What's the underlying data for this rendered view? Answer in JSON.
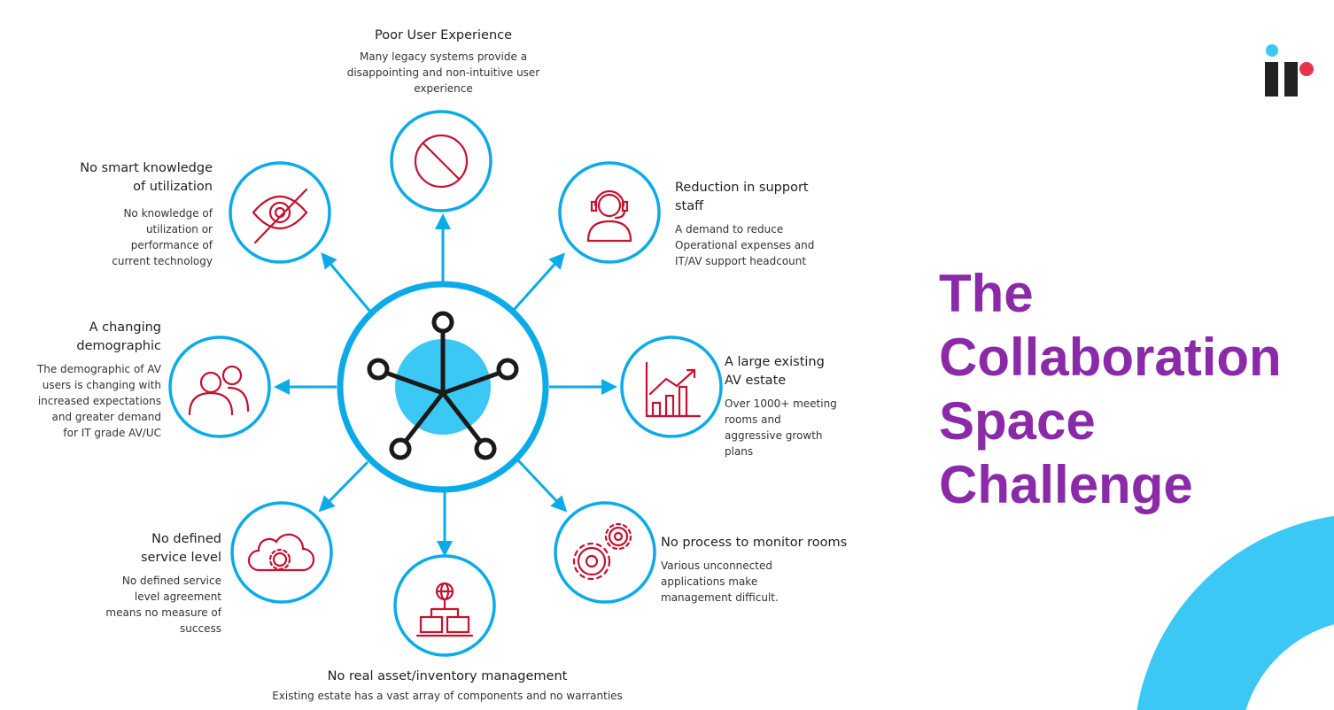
{
  "colors": {
    "ring": "#0aabe8",
    "hub": "#3cc8f4",
    "icon": "#c4122f",
    "title": "#8a2aa8",
    "logo_dot_blue": "#3cc8f4",
    "logo_dot_red": "#e8334a"
  },
  "title": [
    "The",
    "Collaboration",
    "Space",
    "Challenge"
  ],
  "items": [
    {
      "icon": "prohibited-icon",
      "heading": "Poor User Experience",
      "body": "Many legacy systems provide a disappointing and non-intuitive user experience"
    },
    {
      "icon": "headset-agent-icon",
      "heading": "Reduction in support staff",
      "body": "A demand to reduce Operational expenses and IT/AV support headcount"
    },
    {
      "icon": "growth-chart-icon",
      "heading": "A large existing AV estate",
      "body": "Over 1000+ meeting rooms and aggressive growth plans"
    },
    {
      "icon": "gears-icon",
      "heading": "No process to monitor rooms",
      "body": "Various unconnected applications make management difficult."
    },
    {
      "icon": "network-devices-icon",
      "heading": "No real asset/inventory management",
      "body": "Existing estate has a vast array of components and no warranties"
    },
    {
      "icon": "cloud-gear-icon",
      "heading": "No defined service level",
      "body": "No defined service level agreement means no measure of success"
    },
    {
      "icon": "users-icon",
      "heading": "A changing demographic",
      "body": "The demographic of AV users is changing with increased expectations and greater demand for IT grade AV/UC"
    },
    {
      "icon": "eye-slash-icon",
      "heading": "No smart knowledge of utilization",
      "body": "No knowledge of utilization or performance of current technology"
    }
  ]
}
